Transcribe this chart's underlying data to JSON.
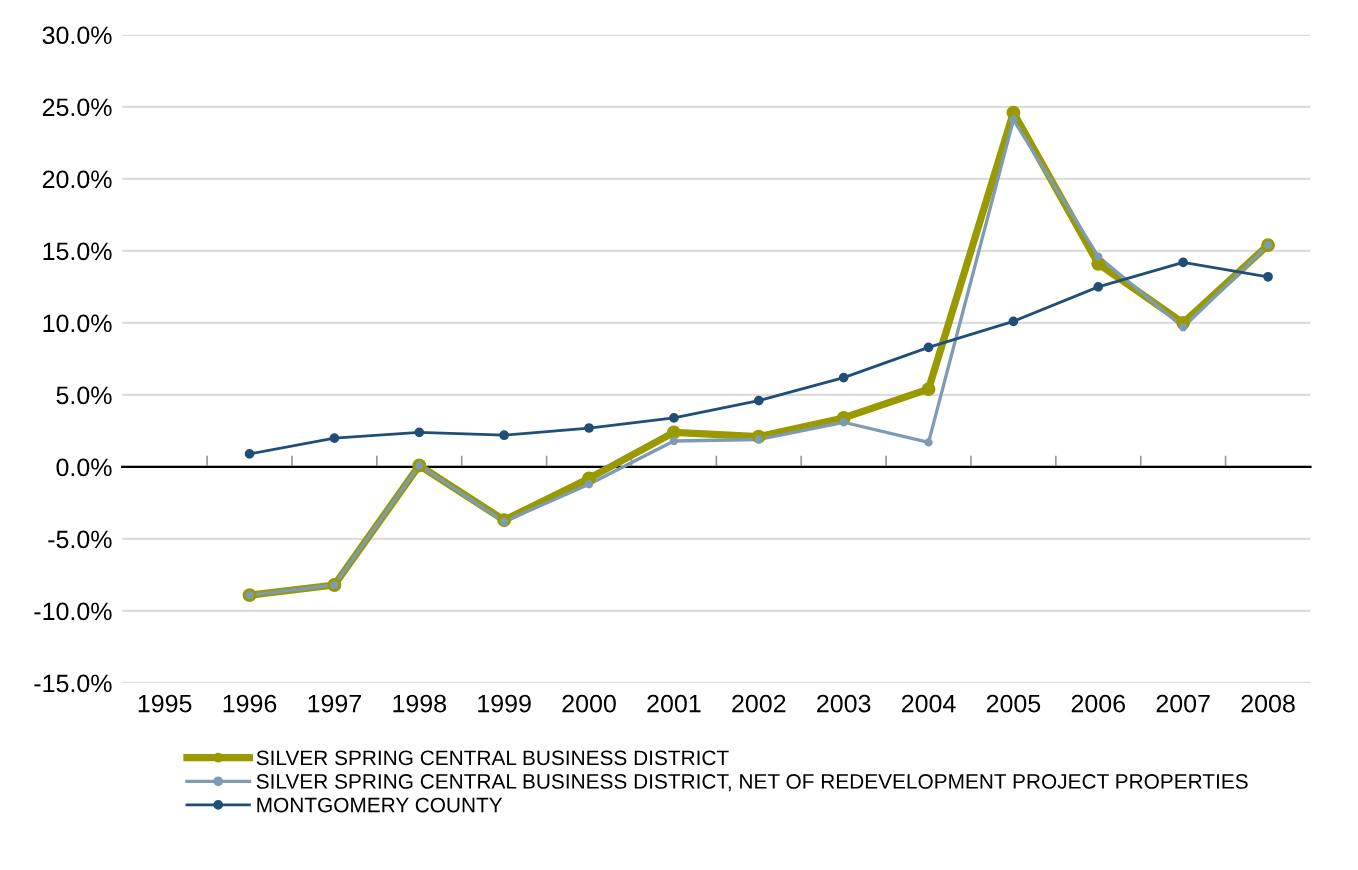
{
  "chart_data": {
    "type": "line",
    "categories": [
      "1995",
      "1996",
      "1997",
      "1998",
      "1999",
      "2000",
      "2001",
      "2002",
      "2003",
      "2004",
      "2005",
      "2006",
      "2007",
      "2008"
    ],
    "ylim": [
      -15,
      30
    ],
    "yticks": [
      {
        "value": -15,
        "label": "-15.0%"
      },
      {
        "value": -10,
        "label": "-10.0%"
      },
      {
        "value": -5,
        "label": "-5.0%"
      },
      {
        "value": 0,
        "label": "0.0%"
      },
      {
        "value": 5,
        "label": "5.0%"
      },
      {
        "value": 10,
        "label": "10.0%"
      },
      {
        "value": 15,
        "label": "15.0%"
      },
      {
        "value": 20,
        "label": "20.0%"
      },
      {
        "value": 25,
        "label": "25.0%"
      },
      {
        "value": 30,
        "label": "30.0%"
      }
    ],
    "grid": "y",
    "legend": "bottom",
    "marker": "circle",
    "line_style": "solid",
    "series": [
      {
        "name": "SILVER SPRING CENTRAL BUSINESS DISTRICT",
        "color": "#999900",
        "values": [
          null,
          -8.9,
          -8.2,
          0.1,
          -3.7,
          -0.8,
          2.4,
          2.1,
          3.4,
          5.4,
          24.6,
          14.1,
          10.0,
          15.4
        ]
      },
      {
        "name": "SILVER SPRING CENTRAL BUSINESS DISTRICT, NET OF REDEVELOPMENT PROJECT PROPERTIES",
        "color": "#7f9bb4",
        "values": [
          null,
          -8.9,
          -8.2,
          0.1,
          -3.8,
          -1.2,
          1.8,
          1.9,
          3.1,
          1.7,
          24.1,
          14.6,
          9.7,
          15.4
        ]
      },
      {
        "name": "MONTGOMERY COUNTY",
        "color": "#1f4e79",
        "values": [
          null,
          0.9,
          2.0,
          2.4,
          2.2,
          2.7,
          3.4,
          4.6,
          6.2,
          8.3,
          10.1,
          12.5,
          14.2,
          13.2
        ]
      }
    ]
  }
}
